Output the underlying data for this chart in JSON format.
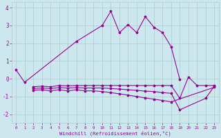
{
  "xlabel": "Windchill (Refroidissement éolien,°C)",
  "background_color": "#cce8ee",
  "grid_color": "#aacccc",
  "line_color": "#990099",
  "xlim": [
    -0.5,
    23.5
  ],
  "ylim": [
    -2.5,
    4.3
  ],
  "yticks": [
    -2,
    -1,
    0,
    1,
    2,
    3,
    4
  ],
  "xticks": [
    0,
    1,
    2,
    3,
    4,
    5,
    6,
    7,
    8,
    9,
    10,
    11,
    12,
    13,
    14,
    15,
    16,
    17,
    18,
    19,
    20,
    21,
    22,
    23
  ],
  "series1_x": [
    0,
    1,
    7,
    10,
    11,
    12,
    13,
    14,
    15,
    16,
    17,
    18,
    19
  ],
  "series1_y": [
    0.5,
    -0.2,
    2.1,
    3.0,
    3.8,
    2.6,
    3.05,
    2.6,
    3.5,
    2.9,
    2.6,
    1.8,
    -0.05
  ],
  "series2_x": [
    2,
    3,
    4,
    5,
    6,
    7,
    8,
    9,
    10,
    11,
    12,
    13,
    14,
    15,
    16,
    17,
    18,
    19,
    20,
    21,
    22,
    23
  ],
  "series2_y": [
    -0.45,
    -0.42,
    -0.45,
    -0.38,
    -0.4,
    -0.38,
    -0.38,
    -0.38,
    -0.38,
    -0.38,
    -0.38,
    -0.38,
    -0.38,
    -0.38,
    -0.38,
    -0.38,
    -0.38,
    -1.1,
    0.1,
    -0.38,
    -0.38,
    -0.38
  ],
  "series3_x": [
    2,
    3,
    4,
    5,
    6,
    7,
    8,
    9,
    10,
    11,
    12,
    13,
    14,
    15,
    16,
    17,
    18,
    19,
    22,
    23
  ],
  "series3_y": [
    -0.55,
    -0.52,
    -0.55,
    -0.5,
    -0.52,
    -0.5,
    -0.52,
    -0.52,
    -0.52,
    -0.55,
    -0.58,
    -0.62,
    -0.65,
    -0.7,
    -0.72,
    -0.78,
    -0.82,
    -1.75,
    -1.1,
    -0.42
  ],
  "series4_x": [
    2,
    3,
    4,
    5,
    6,
    7,
    8,
    9,
    10,
    11,
    12,
    13,
    14,
    15,
    16,
    17,
    18,
    23
  ],
  "series4_y": [
    -0.65,
    -0.62,
    -0.68,
    -0.62,
    -0.68,
    -0.62,
    -0.68,
    -0.68,
    -0.72,
    -0.78,
    -0.85,
    -0.92,
    -1.0,
    -1.08,
    -1.15,
    -1.22,
    -1.3,
    -0.48
  ]
}
